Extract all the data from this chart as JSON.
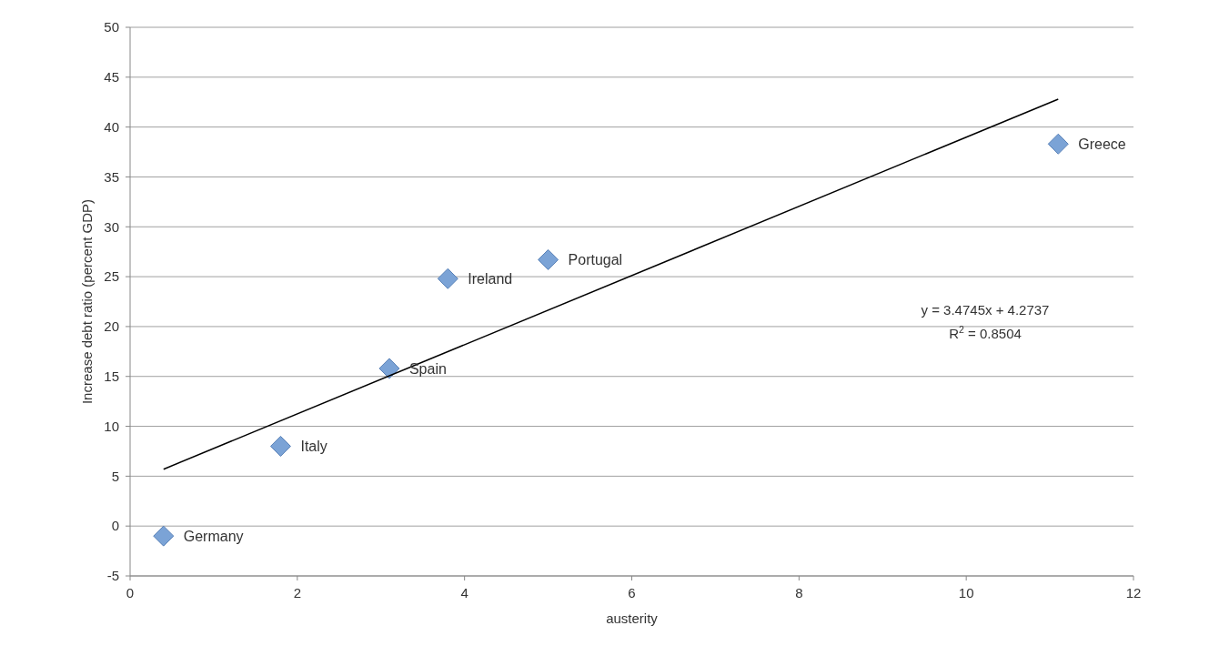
{
  "chart_data": {
    "type": "scatter",
    "xlabel": "austerity",
    "ylabel": "Increase debt ratio (percent GDP)",
    "x": [
      0.4,
      1.8,
      3.1,
      3.8,
      5.0,
      11.1
    ],
    "series": [
      {
        "color": "#7ba3d6",
        "values": [
          -1,
          8,
          15.8,
          24.8,
          26.7,
          38.3
        ],
        "marker": "diamond"
      },
      {
        "type": "line",
        "color": "#000000",
        "x": [
          0.4,
          11.1
        ],
        "values": [
          5.7,
          42.8
        ],
        "marker": "none",
        "line_style": "solid"
      }
    ],
    "annotations": [
      {
        "text": "Germany",
        "x": 0.4,
        "y": -1
      },
      {
        "text": "Italy",
        "x": 1.8,
        "y": 8
      },
      {
        "text": "Spain",
        "x": 3.1,
        "y": 15.8
      },
      {
        "text": "Ireland",
        "x": 3.8,
        "y": 24.8
      },
      {
        "text": "Portugal",
        "x": 5.0,
        "y": 26.7
      },
      {
        "text": "Greece",
        "x": 11.1,
        "y": 38.3
      },
      "y = 3.4745x + 4.2737",
      "R$^{2}$ = 0.8504"
    ],
    "xlim": [
      0,
      12
    ],
    "xticks": [
      0,
      2,
      4,
      6,
      8,
      10,
      12
    ],
    "ylim": [
      -5,
      50
    ],
    "yticks": [
      -5,
      0,
      5,
      10,
      15,
      20,
      25,
      30,
      35,
      40,
      45,
      50
    ],
    "grid": "y"
  }
}
